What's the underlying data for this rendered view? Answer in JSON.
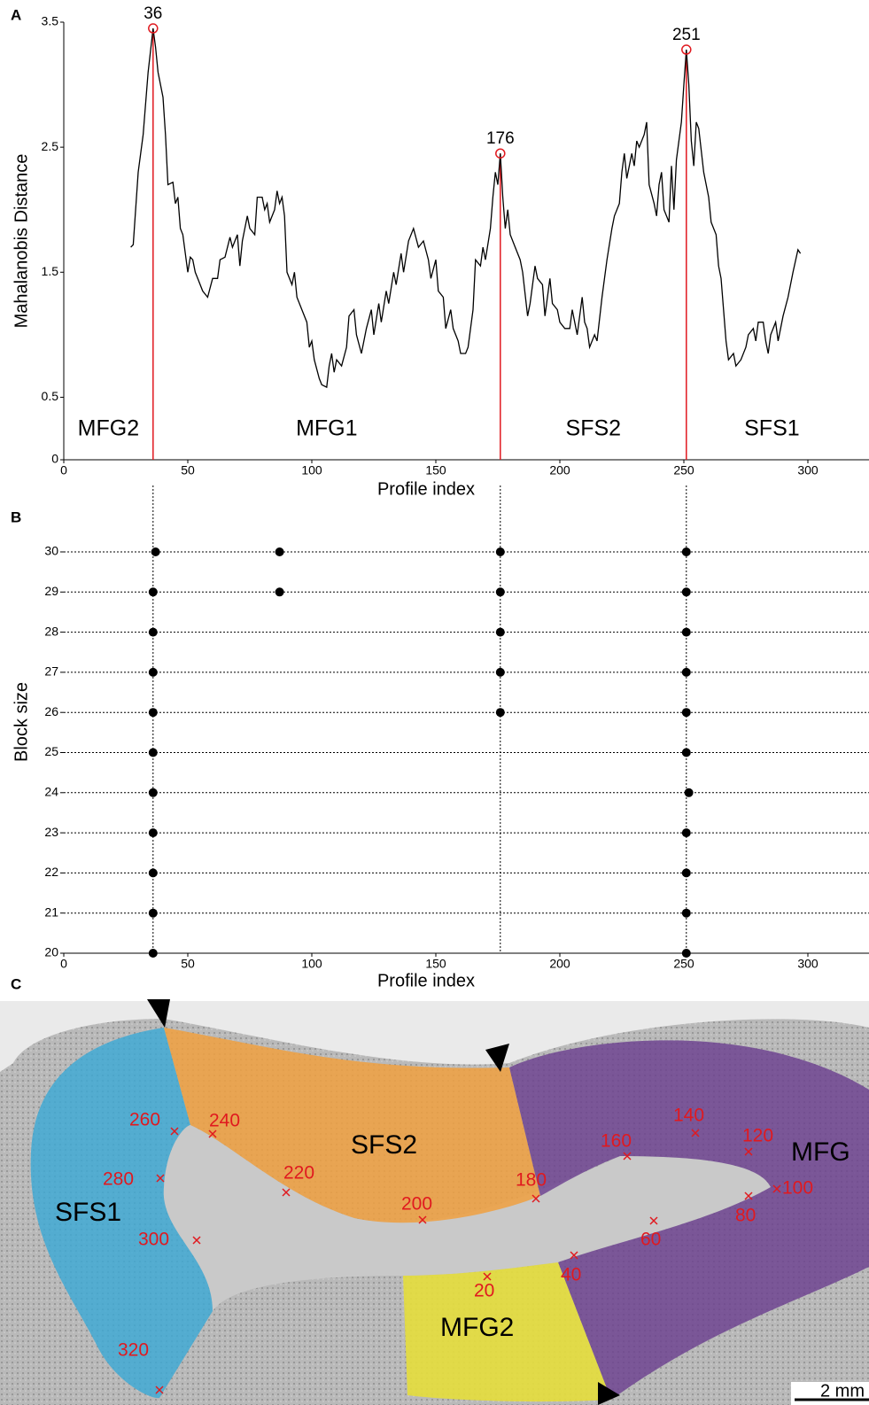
{
  "chart_data": [
    {
      "type": "line",
      "panel": "A",
      "xlabel": "Profile index",
      "ylabel": "Mahalanobis Distance",
      "color": "#000000",
      "x": [
        27,
        28,
        30,
        32,
        34,
        36,
        37,
        38,
        40,
        41,
        42,
        44,
        45,
        46,
        47,
        48,
        49,
        50,
        51,
        52,
        53,
        54,
        56,
        58,
        60,
        62,
        63,
        65,
        67,
        68,
        70,
        71,
        72,
        74,
        75,
        77,
        78,
        80,
        81,
        82,
        83,
        85,
        86,
        87,
        88,
        89,
        90,
        92,
        93,
        94,
        96,
        98,
        99,
        100,
        101,
        103,
        104,
        106,
        107,
        108,
        109,
        110,
        112,
        114,
        115,
        117,
        118,
        120,
        122,
        124,
        125,
        127,
        128,
        130,
        131,
        133,
        134,
        136,
        137,
        139,
        141,
        143,
        145,
        147,
        148,
        150,
        151,
        153,
        154,
        156,
        157,
        159,
        160,
        162,
        163,
        165,
        166,
        168,
        169,
        170,
        172,
        173,
        174,
        175,
        176,
        177,
        178,
        179,
        180,
        182,
        184,
        185,
        187,
        188,
        190,
        191,
        193,
        194,
        196,
        197,
        199,
        200,
        202,
        204,
        205,
        207,
        208,
        209,
        210,
        211,
        212,
        214,
        215,
        217,
        219,
        221,
        222,
        224,
        225,
        226,
        227,
        229,
        230,
        231,
        232,
        234,
        235,
        236,
        238,
        239,
        240,
        241,
        242,
        244,
        245,
        246,
        247,
        249,
        250,
        251,
        252,
        253,
        254,
        255,
        256,
        258,
        259,
        260,
        261,
        263,
        264,
        265,
        266,
        267,
        268,
        270,
        271,
        273,
        275,
        276,
        278,
        279,
        280,
        282,
        283,
        284,
        285,
        287,
        288,
        290,
        292,
        294,
        296,
        297
      ],
      "values": [
        1.7,
        1.72,
        2.3,
        2.6,
        3.1,
        3.45,
        3.3,
        3.1,
        2.9,
        2.6,
        2.2,
        2.22,
        2.05,
        2.1,
        1.85,
        1.8,
        1.65,
        1.5,
        1.62,
        1.6,
        1.5,
        1.45,
        1.35,
        1.3,
        1.45,
        1.45,
        1.6,
        1.62,
        1.78,
        1.7,
        1.8,
        1.55,
        1.75,
        1.95,
        1.85,
        1.8,
        2.1,
        2.1,
        2.0,
        2.05,
        1.9,
        2.0,
        2.15,
        2.05,
        2.1,
        1.95,
        1.5,
        1.4,
        1.5,
        1.3,
        1.2,
        1.1,
        0.9,
        0.95,
        0.8,
        0.65,
        0.6,
        0.58,
        0.75,
        0.85,
        0.7,
        0.8,
        0.75,
        0.9,
        1.15,
        1.2,
        1.0,
        0.85,
        1.05,
        1.2,
        1.0,
        1.25,
        1.1,
        1.35,
        1.25,
        1.5,
        1.4,
        1.65,
        1.5,
        1.75,
        1.85,
        1.7,
        1.75,
        1.6,
        1.45,
        1.6,
        1.35,
        1.3,
        1.05,
        1.2,
        1.05,
        0.95,
        0.85,
        0.85,
        0.9,
        1.2,
        1.6,
        1.55,
        1.7,
        1.6,
        1.85,
        2.1,
        2.3,
        2.2,
        2.45,
        2.1,
        1.85,
        2.0,
        1.8,
        1.7,
        1.6,
        1.5,
        1.15,
        1.25,
        1.55,
        1.45,
        1.4,
        1.15,
        1.45,
        1.25,
        1.2,
        1.1,
        1.05,
        1.05,
        1.2,
        1.0,
        1.15,
        1.3,
        1.1,
        1.05,
        0.9,
        1.0,
        0.95,
        1.3,
        1.6,
        1.85,
        1.95,
        2.05,
        2.3,
        2.45,
        2.25,
        2.45,
        2.35,
        2.55,
        2.5,
        2.6,
        2.7,
        2.2,
        2.05,
        1.95,
        2.2,
        2.3,
        2.0,
        1.9,
        2.35,
        2.0,
        2.4,
        2.7,
        3.0,
        3.28,
        3.0,
        2.55,
        2.35,
        2.7,
        2.65,
        2.3,
        2.2,
        2.1,
        1.9,
        1.8,
        1.55,
        1.45,
        1.2,
        0.95,
        0.8,
        0.85,
        0.75,
        0.8,
        0.9,
        1.0,
        1.05,
        0.95,
        1.1,
        1.1,
        0.95,
        0.85,
        1.0,
        1.1,
        0.95,
        1.15,
        1.3,
        1.5,
        1.68,
        1.65
      ],
      "peaks": [
        {
          "x": 36,
          "y": 3.45
        },
        {
          "x": 176,
          "y": 2.45
        },
        {
          "x": 251,
          "y": 3.28
        }
      ],
      "peak_color": "#e0191f",
      "regions": [
        "MFG2",
        "MFG1",
        "SFS2",
        "SFS1"
      ],
      "xlim": [
        0,
        320
      ],
      "xticks": [
        0,
        50,
        100,
        150,
        200,
        250,
        300
      ],
      "ylim": [
        0,
        3.5
      ],
      "yticks": [
        0,
        0.5,
        1.5,
        2.5,
        3.5
      ],
      "grid": false
    },
    {
      "type": "scatter",
      "panel": "B",
      "xlabel": "Profile index",
      "ylabel": "Block size",
      "color": "#000000",
      "x": [
        36,
        36,
        36,
        36,
        36,
        36,
        36,
        36,
        36,
        36,
        37,
        87,
        87,
        176,
        176,
        176,
        176,
        176,
        251,
        251,
        251,
        251,
        252,
        251,
        251,
        251,
        251,
        251,
        251
      ],
      "y": [
        20,
        21,
        22,
        23,
        24,
        25,
        26,
        27,
        28,
        29,
        30,
        29,
        30,
        26,
        27,
        28,
        29,
        30,
        20,
        21,
        22,
        23,
        24,
        25,
        26,
        27,
        28,
        29,
        30
      ],
      "xlim": [
        0,
        320
      ],
      "xticks": [
        0,
        50,
        100,
        150,
        200,
        250,
        300
      ],
      "ylim": [
        20,
        30
      ],
      "yticks": [
        20,
        21,
        22,
        23,
        24,
        25,
        26,
        27,
        28,
        29,
        30
      ],
      "grid": true
    }
  ],
  "image_panel": {
    "panel": "C",
    "regions": [
      "SFS1",
      "SFS2",
      "MFG",
      "MFG2"
    ],
    "profile_labels": [
      20,
      40,
      60,
      80,
      100,
      120,
      140,
      160,
      180,
      200,
      220,
      240,
      260,
      280,
      300,
      320
    ],
    "scale_bar": "2 mm"
  }
}
